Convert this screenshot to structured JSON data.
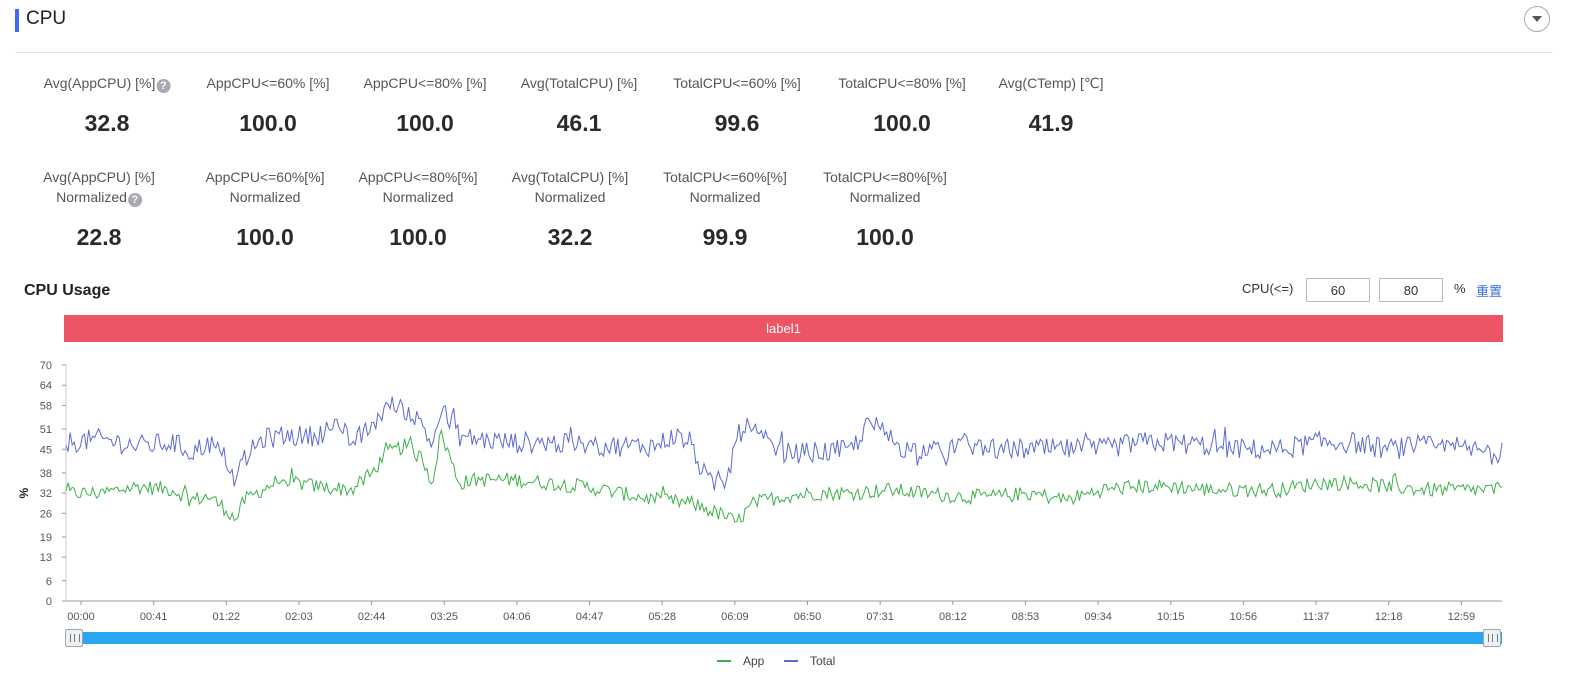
{
  "header": {
    "title": "CPU"
  },
  "stats_row1": [
    {
      "label": "Avg(AppCPU) [%]",
      "value": "32.8",
      "help": true
    },
    {
      "label": "AppCPU<=60% [%]",
      "value": "100.0"
    },
    {
      "label": "AppCPU<=80% [%]",
      "value": "100.0"
    },
    {
      "label": "Avg(TotalCPU) [%]",
      "value": "46.1"
    },
    {
      "label": "TotalCPU<=60% [%]",
      "value": "99.6"
    },
    {
      "label": "TotalCPU<=80% [%]",
      "value": "100.0"
    },
    {
      "label": "Avg(CTemp) [℃]",
      "value": "41.9"
    }
  ],
  "stats_row2": [
    {
      "label": "Avg(AppCPU) [%]",
      "label2": "Normalized",
      "value": "22.8",
      "help": true
    },
    {
      "label": "AppCPU<=60%[%]",
      "label2": "Normalized",
      "value": "100.0"
    },
    {
      "label": "AppCPU<=80%[%]",
      "label2": "Normalized",
      "value": "100.0"
    },
    {
      "label": "Avg(TotalCPU) [%]",
      "label2": "Normalized",
      "value": "32.2"
    },
    {
      "label": "TotalCPU<=60%[%]",
      "label2": "Normalized",
      "value": "99.9"
    },
    {
      "label": "TotalCPU<=80%[%]",
      "label2": "Normalized",
      "value": "100.0"
    }
  ],
  "usage": {
    "title": "CPU Usage",
    "cpu_label": "CPU(<=)",
    "threshold1": "60",
    "threshold2": "80",
    "unit": "%",
    "reset_label": "重置",
    "band_label": "label1"
  },
  "colors": {
    "app": "#3cb04a",
    "total": "#5b6ad1",
    "band": "#ed5565",
    "slider": "#2aa7f1",
    "accent": "#3d6df2"
  },
  "chart_data": {
    "type": "line",
    "title": "",
    "xlabel": "",
    "ylabel": "%",
    "ylim": [
      0,
      70
    ],
    "y_ticks": [
      "0",
      "6",
      "13",
      "19",
      "26",
      "32",
      "38",
      "45",
      "51",
      "58",
      "64",
      "70"
    ],
    "x_ticks": [
      "00:00",
      "00:41",
      "01:22",
      "02:03",
      "02:44",
      "03:25",
      "04:06",
      "04:47",
      "05:28",
      "06:09",
      "06:50",
      "07:31",
      "08:12",
      "08:53",
      "09:34",
      "10:15",
      "10:56",
      "11:37",
      "12:18",
      "12:59"
    ],
    "x_range_seconds": [
      0,
      48240
    ],
    "legend_position": "bottom-center",
    "grid": false,
    "series": [
      {
        "name": "App",
        "points": [
          [
            0,
            32
          ],
          [
            1200,
            32
          ],
          [
            2400,
            34
          ],
          [
            3600,
            33
          ],
          [
            4200,
            30
          ],
          [
            4800,
            31
          ],
          [
            5400,
            27
          ],
          [
            5700,
            24
          ],
          [
            6000,
            30
          ],
          [
            6600,
            33
          ],
          [
            7200,
            36
          ],
          [
            8400,
            34
          ],
          [
            9600,
            33
          ],
          [
            10200,
            37
          ],
          [
            10800,
            44
          ],
          [
            11400,
            46
          ],
          [
            12000,
            42
          ],
          [
            12300,
            35
          ],
          [
            12600,
            50
          ],
          [
            13200,
            35
          ],
          [
            13800,
            36
          ],
          [
            15000,
            36
          ],
          [
            16200,
            35
          ],
          [
            17400,
            34
          ],
          [
            18600,
            32
          ],
          [
            19800,
            30
          ],
          [
            21000,
            29
          ],
          [
            21600,
            27
          ],
          [
            22200,
            25
          ],
          [
            22500,
            23
          ],
          [
            23100,
            29
          ],
          [
            24000,
            31
          ],
          [
            25200,
            32
          ],
          [
            26400,
            32
          ],
          [
            27600,
            33
          ],
          [
            28800,
            32
          ],
          [
            30000,
            31
          ],
          [
            31200,
            31
          ],
          [
            32400,
            32
          ],
          [
            33600,
            30
          ],
          [
            34800,
            33
          ],
          [
            36000,
            34
          ],
          [
            37200,
            34
          ],
          [
            38400,
            33
          ],
          [
            39600,
            33
          ],
          [
            40800,
            33
          ],
          [
            42000,
            35
          ],
          [
            43200,
            35
          ],
          [
            44400,
            34
          ],
          [
            45600,
            33
          ],
          [
            46800,
            33
          ],
          [
            48240,
            33
          ]
        ]
      },
      {
        "name": "Total",
        "points": [
          [
            0,
            47
          ],
          [
            1200,
            48
          ],
          [
            2400,
            46
          ],
          [
            3600,
            47
          ],
          [
            4200,
            44
          ],
          [
            4800,
            47
          ],
          [
            5400,
            42
          ],
          [
            5700,
            35
          ],
          [
            6000,
            42
          ],
          [
            6600,
            48
          ],
          [
            7200,
            49
          ],
          [
            8400,
            49
          ],
          [
            9000,
            52
          ],
          [
            9600,
            47
          ],
          [
            10200,
            51
          ],
          [
            10800,
            58
          ],
          [
            11400,
            57
          ],
          [
            12000,
            52
          ],
          [
            12300,
            46
          ],
          [
            12600,
            57
          ],
          [
            13200,
            49
          ],
          [
            13800,
            48
          ],
          [
            15000,
            47
          ],
          [
            16200,
            47
          ],
          [
            17400,
            46
          ],
          [
            18600,
            46
          ],
          [
            19800,
            46
          ],
          [
            20400,
            49
          ],
          [
            21000,
            47
          ],
          [
            21300,
            40
          ],
          [
            21600,
            35
          ],
          [
            22200,
            35
          ],
          [
            22500,
            48
          ],
          [
            22800,
            52
          ],
          [
            23400,
            48
          ],
          [
            24000,
            44
          ],
          [
            25200,
            44
          ],
          [
            26400,
            45
          ],
          [
            27000,
            53
          ],
          [
            27600,
            49
          ],
          [
            28200,
            45
          ],
          [
            28800,
            45
          ],
          [
            29400,
            44
          ],
          [
            30000,
            47
          ],
          [
            31200,
            45
          ],
          [
            32400,
            45
          ],
          [
            33600,
            45
          ],
          [
            34800,
            45
          ],
          [
            36000,
            47
          ],
          [
            37200,
            47
          ],
          [
            38400,
            46
          ],
          [
            39600,
            45
          ],
          [
            40800,
            45
          ],
          [
            42000,
            47
          ],
          [
            43200,
            47
          ],
          [
            44400,
            45
          ],
          [
            45600,
            46
          ],
          [
            46800,
            45
          ],
          [
            48240,
            44
          ]
        ]
      }
    ]
  }
}
